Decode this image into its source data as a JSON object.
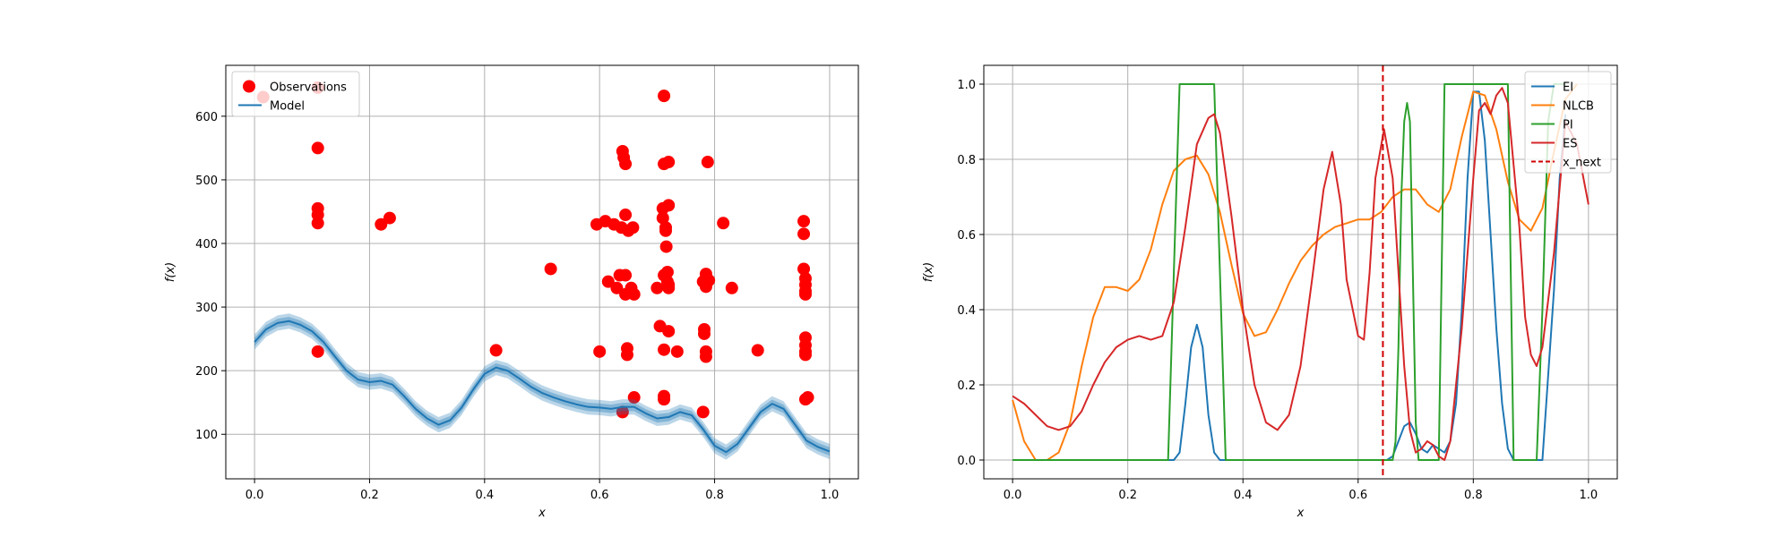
{
  "chart_data": [
    {
      "type": "scatter",
      "xlabel": "x",
      "ylabel": "f(x)",
      "xlim": [
        -0.05,
        1.05
      ],
      "ylim": [
        30,
        680
      ],
      "xticks": [
        0.0,
        0.2,
        0.4,
        0.6,
        0.8,
        1.0
      ],
      "xtick_labels": [
        "0.0",
        "0.2",
        "0.4",
        "0.6",
        "0.8",
        "1.0"
      ],
      "yticks": [
        100,
        200,
        300,
        400,
        500,
        600
      ],
      "ytick_labels": [
        "100",
        "200",
        "300",
        "400",
        "500",
        "600"
      ],
      "grid": true,
      "legend": "upper left",
      "series": [
        {
          "name": "Observations",
          "kind": "markers",
          "color": "#ff0000",
          "points": [
            [
              0.015,
              630
            ],
            [
              0.11,
              645
            ],
            [
              0.11,
              550
            ],
            [
              0.11,
              455
            ],
            [
              0.11,
              445
            ],
            [
              0.11,
              432
            ],
            [
              0.11,
              230
            ],
            [
              0.22,
              430
            ],
            [
              0.235,
              440
            ],
            [
              0.42,
              232
            ],
            [
              0.515,
              360
            ],
            [
              0.595,
              430
            ],
            [
              0.6,
              230
            ],
            [
              0.61,
              435
            ],
            [
              0.615,
              340
            ],
            [
              0.625,
              430
            ],
            [
              0.63,
              330
            ],
            [
              0.635,
              350
            ],
            [
              0.638,
              425
            ],
            [
              0.64,
              135
            ],
            [
              0.64,
              545
            ],
            [
              0.642,
              535
            ],
            [
              0.645,
              525
            ],
            [
              0.645,
              445
            ],
            [
              0.645,
              350
            ],
            [
              0.645,
              320
            ],
            [
              0.648,
              235
            ],
            [
              0.648,
              225
            ],
            [
              0.65,
              420
            ],
            [
              0.655,
              330
            ],
            [
              0.658,
              425
            ],
            [
              0.66,
              320
            ],
            [
              0.66,
              158
            ],
            [
              0.7,
              330
            ],
            [
              0.705,
              270
            ],
            [
              0.71,
              455
            ],
            [
              0.71,
              440
            ],
            [
              0.712,
              632
            ],
            [
              0.712,
              525
            ],
            [
              0.712,
              350
            ],
            [
              0.712,
              233
            ],
            [
              0.712,
              160
            ],
            [
              0.712,
              155
            ],
            [
              0.715,
              425
            ],
            [
              0.715,
              420
            ],
            [
              0.716,
              395
            ],
            [
              0.718,
              355
            ],
            [
              0.718,
              340
            ],
            [
              0.72,
              335
            ],
            [
              0.72,
              330
            ],
            [
              0.72,
              460
            ],
            [
              0.72,
              528
            ],
            [
              0.72,
              262
            ],
            [
              0.735,
              230
            ],
            [
              0.78,
              135
            ],
            [
              0.78,
              340
            ],
            [
              0.782,
              265
            ],
            [
              0.782,
              258
            ],
            [
              0.785,
              352
            ],
            [
              0.785,
              332
            ],
            [
              0.785,
              230
            ],
            [
              0.785,
              222
            ],
            [
              0.788,
              528
            ],
            [
              0.79,
              342
            ],
            [
              0.815,
              432
            ],
            [
              0.83,
              330
            ],
            [
              0.875,
              232
            ],
            [
              0.955,
              435
            ],
            [
              0.955,
              415
            ],
            [
              0.955,
              360
            ],
            [
              0.958,
              345
            ],
            [
              0.958,
              335
            ],
            [
              0.958,
              325
            ],
            [
              0.958,
              320
            ],
            [
              0.958,
              252
            ],
            [
              0.958,
              240
            ],
            [
              0.958,
              230
            ],
            [
              0.958,
              225
            ],
            [
              0.958,
              155
            ],
            [
              0.962,
              158
            ]
          ]
        },
        {
          "name": "Model",
          "kind": "line",
          "color": "#1f77b4",
          "band_half_width": 12,
          "x": [
            0,
            0.02,
            0.04,
            0.06,
            0.08,
            0.1,
            0.12,
            0.14,
            0.16,
            0.18,
            0.2,
            0.22,
            0.24,
            0.26,
            0.28,
            0.3,
            0.32,
            0.34,
            0.36,
            0.38,
            0.4,
            0.42,
            0.44,
            0.46,
            0.48,
            0.5,
            0.52,
            0.54,
            0.56,
            0.58,
            0.6,
            0.62,
            0.64,
            0.66,
            0.68,
            0.7,
            0.72,
            0.74,
            0.76,
            0.78,
            0.8,
            0.82,
            0.84,
            0.86,
            0.88,
            0.9,
            0.92,
            0.94,
            0.96,
            0.98,
            1.0
          ],
          "y": [
            245,
            265,
            275,
            278,
            272,
            262,
            245,
            222,
            200,
            186,
            182,
            184,
            178,
            160,
            140,
            125,
            115,
            122,
            142,
            170,
            195,
            205,
            200,
            188,
            175,
            165,
            158,
            152,
            147,
            143,
            142,
            140,
            143,
            143,
            133,
            125,
            127,
            135,
            130,
            108,
            82,
            72,
            85,
            110,
            135,
            148,
            140,
            115,
            90,
            80,
            73
          ]
        }
      ]
    },
    {
      "type": "line",
      "xlabel": "x",
      "ylabel": "f(x)",
      "xlim": [
        -0.05,
        1.05
      ],
      "ylim": [
        -0.05,
        1.05
      ],
      "xticks": [
        0.0,
        0.2,
        0.4,
        0.6,
        0.8,
        1.0
      ],
      "xtick_labels": [
        "0.0",
        "0.2",
        "0.4",
        "0.6",
        "0.8",
        "1.0"
      ],
      "yticks": [
        0.0,
        0.2,
        0.4,
        0.6,
        0.8,
        1.0
      ],
      "ytick_labels": [
        "0.0",
        "0.2",
        "0.4",
        "0.6",
        "0.8",
        "1.0"
      ],
      "grid": true,
      "legend": "upper right",
      "series": [
        {
          "name": "EI",
          "color": "#1f77b4",
          "x": [
            0,
            0.28,
            0.29,
            0.3,
            0.31,
            0.32,
            0.33,
            0.34,
            0.35,
            0.36,
            0.65,
            0.66,
            0.67,
            0.68,
            0.69,
            0.7,
            0.71,
            0.72,
            0.73,
            0.74,
            0.75,
            0.76,
            0.77,
            0.78,
            0.79,
            0.8,
            0.81,
            0.82,
            0.83,
            0.84,
            0.85,
            0.86,
            0.87,
            0.88,
            0.9,
            0.92,
            0.94,
            0.95,
            0.96
          ],
          "y": [
            0,
            0,
            0.02,
            0.15,
            0.3,
            0.36,
            0.3,
            0.12,
            0.02,
            0,
            0,
            0.01,
            0.05,
            0.09,
            0.1,
            0.07,
            0.03,
            0.02,
            0.04,
            0.03,
            0.02,
            0.05,
            0.15,
            0.4,
            0.75,
            0.98,
            0.98,
            0.85,
            0.6,
            0.35,
            0.15,
            0.03,
            0,
            0,
            0,
            0,
            0.45,
            0.75,
            0.92
          ]
        },
        {
          "name": "NLCB",
          "color": "#ff7f0e",
          "x": [
            0,
            0.02,
            0.04,
            0.06,
            0.08,
            0.1,
            0.12,
            0.14,
            0.16,
            0.18,
            0.2,
            0.22,
            0.24,
            0.26,
            0.28,
            0.3,
            0.32,
            0.34,
            0.36,
            0.38,
            0.4,
            0.42,
            0.44,
            0.46,
            0.48,
            0.5,
            0.52,
            0.54,
            0.56,
            0.58,
            0.6,
            0.62,
            0.64,
            0.66,
            0.68,
            0.7,
            0.72,
            0.74,
            0.76,
            0.78,
            0.8,
            0.82,
            0.84,
            0.86,
            0.88,
            0.9,
            0.92,
            0.94,
            0.96,
            0.98
          ],
          "y": [
            0.16,
            0.05,
            0,
            0,
            0.02,
            0.1,
            0.25,
            0.38,
            0.46,
            0.46,
            0.45,
            0.48,
            0.56,
            0.68,
            0.77,
            0.8,
            0.81,
            0.76,
            0.66,
            0.52,
            0.39,
            0.33,
            0.34,
            0.4,
            0.47,
            0.53,
            0.57,
            0.6,
            0.62,
            0.63,
            0.64,
            0.64,
            0.66,
            0.7,
            0.72,
            0.72,
            0.68,
            0.66,
            0.72,
            0.86,
            0.98,
            0.97,
            0.88,
            0.74,
            0.64,
            0.61,
            0.67,
            0.82,
            0.96,
            1.0
          ]
        },
        {
          "name": "PI",
          "color": "#2ca02c",
          "x": [
            0,
            0.27,
            0.28,
            0.29,
            0.35,
            0.36,
            0.37,
            0.66,
            0.665,
            0.67,
            0.675,
            0.68,
            0.685,
            0.69,
            0.695,
            0.7,
            0.705,
            0.74,
            0.745,
            0.75,
            0.76,
            0.86,
            0.87,
            0.91,
            0.92,
            0.93,
            0.94,
            0.95,
            0.96
          ],
          "y": [
            0,
            0,
            0.5,
            1,
            1,
            0.5,
            0,
            0,
            0.05,
            0.3,
            0.7,
            0.9,
            0.95,
            0.9,
            0.5,
            0.1,
            0,
            0,
            0.5,
            1,
            1,
            1,
            0,
            0,
            0.4,
            0.9,
            1,
            1,
            1
          ]
        },
        {
          "name": "ES",
          "color": "#d62728",
          "x": [
            0,
            0.02,
            0.04,
            0.06,
            0.08,
            0.1,
            0.12,
            0.14,
            0.16,
            0.18,
            0.2,
            0.22,
            0.24,
            0.26,
            0.28,
            0.3,
            0.32,
            0.34,
            0.35,
            0.36,
            0.38,
            0.4,
            0.42,
            0.44,
            0.46,
            0.48,
            0.5,
            0.52,
            0.54,
            0.555,
            0.57,
            0.58,
            0.6,
            0.61,
            0.62,
            0.63,
            0.645,
            0.66,
            0.67,
            0.68,
            0.69,
            0.7,
            0.71,
            0.72,
            0.73,
            0.74,
            0.75,
            0.76,
            0.78,
            0.8,
            0.81,
            0.82,
            0.83,
            0.84,
            0.85,
            0.86,
            0.88,
            0.89,
            0.9,
            0.91,
            0.92,
            0.94,
            0.96,
            0.98,
            1.0
          ],
          "y": [
            0.17,
            0.15,
            0.12,
            0.09,
            0.08,
            0.09,
            0.13,
            0.2,
            0.26,
            0.3,
            0.32,
            0.33,
            0.32,
            0.33,
            0.42,
            0.62,
            0.84,
            0.91,
            0.92,
            0.87,
            0.65,
            0.4,
            0.2,
            0.1,
            0.08,
            0.12,
            0.25,
            0.48,
            0.72,
            0.82,
            0.68,
            0.48,
            0.33,
            0.32,
            0.5,
            0.75,
            0.88,
            0.75,
            0.5,
            0.25,
            0.08,
            0.02,
            0.03,
            0.05,
            0.04,
            0.01,
            0,
            0.05,
            0.35,
            0.75,
            0.93,
            0.95,
            0.92,
            0.97,
            0.99,
            0.95,
            0.62,
            0.38,
            0.28,
            0.25,
            0.3,
            0.55,
            0.9,
            0.84,
            0.68
          ]
        },
        {
          "name": "x_next",
          "kind": "vline",
          "color": "#d00000",
          "dash": true,
          "x": 0.643
        }
      ]
    }
  ]
}
